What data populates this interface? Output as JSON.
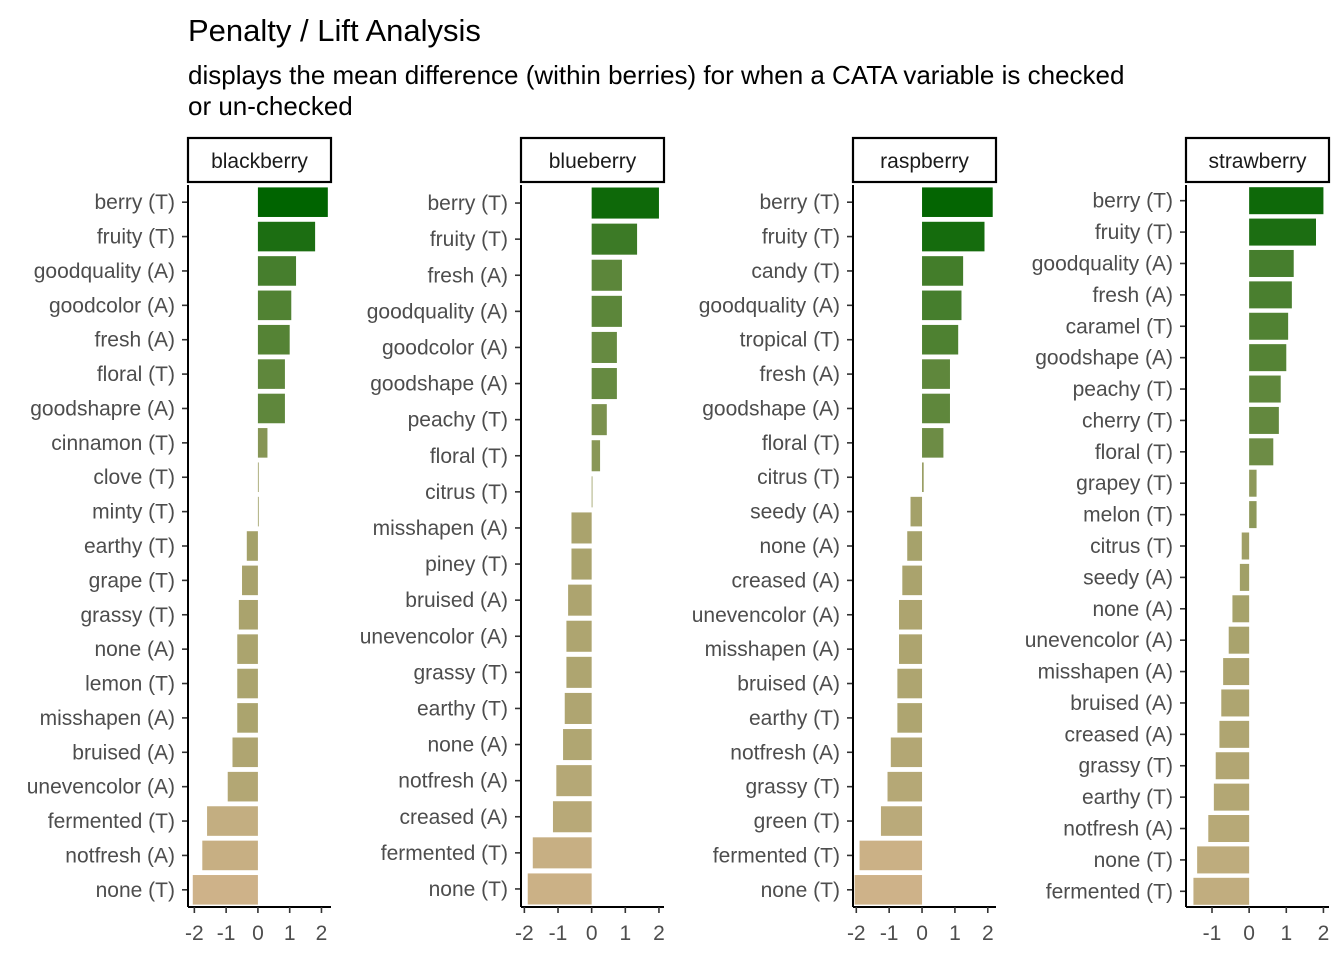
{
  "chart_data": {
    "type": "bar",
    "orientation": "horizontal",
    "title": "Penalty / Lift Analysis",
    "subtitle_lines": [
      "displays the mean difference (within berries) for when a CATA variable is checked",
      "or un-checked"
    ],
    "grid": false,
    "color_scale": {
      "positive": "#006400",
      "neutral": "#9b9d62",
      "negative": "#d2b48c"
    },
    "facets": [
      {
        "name": "blackberry",
        "xlim": [
          -2.2,
          2.3
        ],
        "xticks": [
          -2,
          -1,
          0,
          1,
          2
        ],
        "categories": [
          "berry (T)",
          "fruity (T)",
          "goodquality (A)",
          "goodcolor (A)",
          "fresh (A)",
          "floral (T)",
          "goodshapre (A)",
          "cinnamon (T)",
          "clove (T)",
          "minty (T)",
          "earthy (T)",
          "grape (T)",
          "grassy (T)",
          "none (A)",
          "lemon (T)",
          "misshapen (A)",
          "bruised (A)",
          "unevencolor (A)",
          "fermented (T)",
          "notfresh (A)",
          "none (T)"
        ],
        "values": [
          2.2,
          1.8,
          1.2,
          1.05,
          1.0,
          0.85,
          0.85,
          0.3,
          0.0,
          0.0,
          -0.35,
          -0.5,
          -0.6,
          -0.65,
          -0.65,
          -0.65,
          -0.8,
          -0.95,
          -1.6,
          -1.75,
          -2.05
        ]
      },
      {
        "name": "blueberry",
        "xlim": [
          -2.1,
          2.15
        ],
        "xticks": [
          -2,
          -1,
          0,
          1,
          2
        ],
        "categories": [
          "berry (T)",
          "fruity (T)",
          "fresh (A)",
          "goodquality (A)",
          "goodcolor (A)",
          "goodshape (A)",
          "peachy (T)",
          "floral (T)",
          "citrus (T)",
          "misshapen (A)",
          "piney (T)",
          "bruised (A)",
          "unevencolor (A)",
          "grassy (T)",
          "earthy (T)",
          "none (A)",
          "notfresh (A)",
          "creased (A)",
          "fermented (T)",
          "none (T)"
        ],
        "values": [
          2.0,
          1.35,
          0.9,
          0.9,
          0.75,
          0.75,
          0.45,
          0.25,
          0.0,
          -0.6,
          -0.6,
          -0.7,
          -0.75,
          -0.75,
          -0.8,
          -0.85,
          -1.05,
          -1.15,
          -1.75,
          -1.9
        ]
      },
      {
        "name": "raspberry",
        "xlim": [
          -2.1,
          2.25
        ],
        "xticks": [
          -2,
          -1,
          0,
          1,
          2
        ],
        "categories": [
          "berry (T)",
          "fruity (T)",
          "candy (T)",
          "goodquality (A)",
          "tropical (T)",
          "fresh (A)",
          "goodshape (A)",
          "floral (T)",
          "citrus (T)",
          "seedy (A)",
          "none (A)",
          "creased (A)",
          "unevencolor (A)",
          "misshapen (A)",
          "bruised (A)",
          "earthy (T)",
          "notfresh (A)",
          "grassy (T)",
          "green (T)",
          "fermented (T)",
          "none (T)"
        ],
        "values": [
          2.15,
          1.9,
          1.25,
          1.2,
          1.1,
          0.85,
          0.85,
          0.65,
          0.05,
          -0.35,
          -0.45,
          -0.6,
          -0.7,
          -0.7,
          -0.75,
          -0.75,
          -0.95,
          -1.05,
          -1.25,
          -1.9,
          -2.05
        ]
      },
      {
        "name": "strawberry",
        "xlim": [
          -1.7,
          2.15
        ],
        "xticks": [
          -1,
          0,
          1,
          2
        ],
        "categories": [
          "berry (T)",
          "fruity (T)",
          "goodquality (A)",
          "fresh (A)",
          "caramel (T)",
          "goodshape (A)",
          "peachy (T)",
          "cherry (T)",
          "floral (T)",
          "grapey (T)",
          "melon (T)",
          "citrus (T)",
          "seedy (A)",
          "none (A)",
          "unevencolor (A)",
          "misshapen (A)",
          "bruised (A)",
          "creased (A)",
          "grassy (T)",
          "earthy (T)",
          "notfresh (A)",
          "none (T)",
          "fermented (T)"
        ],
        "values": [
          2.0,
          1.8,
          1.2,
          1.15,
          1.05,
          1.0,
          0.85,
          0.8,
          0.65,
          0.2,
          0.2,
          -0.2,
          -0.25,
          -0.45,
          -0.55,
          -0.7,
          -0.75,
          -0.8,
          -0.9,
          -0.95,
          -1.1,
          -1.4,
          -1.5
        ]
      }
    ]
  }
}
